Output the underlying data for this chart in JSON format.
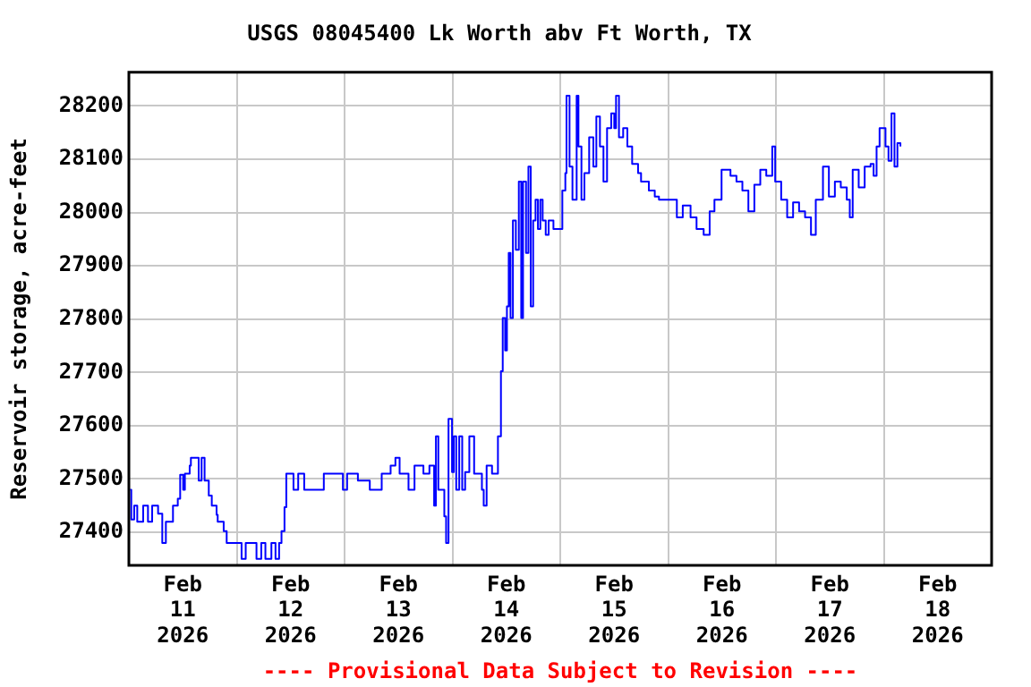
{
  "chart_data": {
    "type": "step",
    "title": "USGS 08045400 Lk Worth abv Ft Worth, TX",
    "ylabel": "Reservoir storage, acre-feet",
    "annotations": [
      "---- Provisional Data Subject to Revision ----"
    ],
    "series": [
      {
        "color": "#0000ff",
        "x": [
          "2026-02-11T00:16",
          "2026-02-11T00:32",
          "2026-02-11T01:11",
          "2026-02-11T01:52",
          "2026-02-11T03:11",
          "2026-02-11T04:15",
          "2026-02-11T05:11",
          "2026-02-11T06:30",
          "2026-02-11T07:26",
          "2026-02-11T08:14",
          "2026-02-11T09:49",
          "2026-02-11T10:53",
          "2026-02-11T11:25",
          "2026-02-11T12:05",
          "2026-02-11T12:28",
          "2026-02-11T13:32",
          "2026-02-11T13:48",
          "2026-02-11T15:08",
          "2026-02-11T15:32",
          "2026-02-11T16:11",
          "2026-02-11T16:51",
          "2026-02-11T17:47",
          "2026-02-11T18:27",
          "2026-02-11T19:31",
          "2026-02-11T19:46",
          "2026-02-11T21:06",
          "2026-02-11T21:46",
          "2026-02-11T22:26",
          "2026-02-12T01:05",
          "2026-02-12T02:00",
          "2026-02-12T04:24",
          "2026-02-12T05:28",
          "2026-02-12T06:23",
          "2026-02-12T07:43",
          "2026-02-12T08:38",
          "2026-02-12T09:26",
          "2026-02-12T09:58",
          "2026-02-12T10:38",
          "2026-02-12T11:02",
          "2026-02-12T12:38",
          "2026-02-12T13:41",
          "2026-02-12T15:01",
          "2026-02-12T16:20",
          "2026-02-12T19:23",
          "2026-02-12T23:38",
          "2026-02-13T00:34",
          "2026-02-13T02:58",
          "2026-02-13T05:37",
          "2026-02-13T08:16",
          "2026-02-13T10:15",
          "2026-02-13T11:19",
          "2026-02-13T12:15",
          "2026-02-13T14:14",
          "2026-02-13T15:34",
          "2026-02-13T17:33",
          "2026-02-13T18:53",
          "2026-02-13T19:56",
          "2026-02-13T20:20",
          "2026-02-13T20:52",
          "2026-02-13T21:48",
          "2026-02-13T22:12",
          "2026-02-13T22:36",
          "2026-02-13T23:08",
          "2026-02-13T23:55",
          "2026-02-14T00:19",
          "2026-02-14T00:51",
          "2026-02-14T01:31",
          "2026-02-14T02:11",
          "2026-02-14T02:50",
          "2026-02-14T03:46",
          "2026-02-14T04:50",
          "2026-02-14T06:34",
          "2026-02-14T06:58",
          "2026-02-14T07:37",
          "2026-02-14T08:49",
          "2026-02-14T09:29",
          "2026-02-14T10:08",
          "2026-02-14T10:48",
          "2026-02-14T11:12",
          "2026-02-14T11:44",
          "2026-02-14T12:08",
          "2026-02-14T12:32",
          "2026-02-14T12:56",
          "2026-02-14T13:28",
          "2026-02-14T14:07",
          "2026-02-14T14:47",
          "2026-02-14T15:19",
          "2026-02-14T15:43",
          "2026-02-14T16:23",
          "2026-02-14T16:55",
          "2026-02-14T17:26",
          "2026-02-14T17:58",
          "2026-02-14T18:30",
          "2026-02-14T19:02",
          "2026-02-14T19:34",
          "2026-02-14T20:05",
          "2026-02-14T20:46",
          "2026-02-14T21:25",
          "2026-02-14T22:29",
          "2026-02-14T23:40",
          "2026-02-15T00:28",
          "2026-02-15T01:08",
          "2026-02-15T01:24",
          "2026-02-15T02:04",
          "2026-02-15T02:43",
          "2026-02-15T03:39",
          "2026-02-15T04:03",
          "2026-02-15T04:43",
          "2026-02-15T05:23",
          "2026-02-15T06:26",
          "2026-02-15T07:22",
          "2026-02-15T08:02",
          "2026-02-15T08:50",
          "2026-02-15T09:37",
          "2026-02-15T10:25",
          "2026-02-15T11:21",
          "2026-02-15T12:01",
          "2026-02-15T12:25",
          "2026-02-15T13:04",
          "2026-02-15T14:00",
          "2026-02-15T14:56",
          "2026-02-15T16:00",
          "2026-02-15T17:19",
          "2026-02-15T17:59",
          "2026-02-15T19:43",
          "2026-02-15T21:02",
          "2026-02-15T21:58",
          "2026-02-16T01:17",
          "2026-02-16T01:57",
          "2026-02-16T03:16",
          "2026-02-16T05:00",
          "2026-02-16T06:20",
          "2026-02-16T07:55",
          "2026-02-16T09:15",
          "2026-02-16T10:19",
          "2026-02-16T11:54",
          "2026-02-16T13:53",
          "2026-02-16T15:13",
          "2026-02-16T16:32",
          "2026-02-16T17:52",
          "2026-02-16T19:12",
          "2026-02-16T20:31",
          "2026-02-16T21:51",
          "2026-02-16T23:11",
          "2026-02-16T23:50",
          "2026-02-17T01:10",
          "2026-02-17T02:30",
          "2026-02-17T03:49",
          "2026-02-17T05:09",
          "2026-02-17T06:29",
          "2026-02-17T07:48",
          "2026-02-17T08:52",
          "2026-02-17T10:28",
          "2026-02-17T11:47",
          "2026-02-17T13:07",
          "2026-02-17T14:26",
          "2026-02-17T15:46",
          "2026-02-17T16:26",
          "2026-02-17T17:05",
          "2026-02-17T18:25",
          "2026-02-17T19:45",
          "2026-02-17T21:04",
          "2026-02-17T21:44",
          "2026-02-17T22:24",
          "2026-02-17T23:04",
          "2026-02-18T00:23",
          "2026-02-18T01:03",
          "2026-02-18T01:43",
          "2026-02-18T02:23",
          "2026-02-18T03:02",
          "2026-02-18T03:42"
        ],
        "values": [
          27480,
          27424,
          27450,
          27420,
          27450,
          27420,
          27450,
          27435,
          27380,
          27420,
          27450,
          27463,
          27508,
          27480,
          27510,
          27525,
          27540,
          27540,
          27497,
          27540,
          27497,
          27469,
          27450,
          27433,
          27420,
          27402,
          27380,
          27380,
          27350,
          27380,
          27350,
          27380,
          27350,
          27380,
          27350,
          27380,
          27402,
          27447,
          27510,
          27480,
          27510,
          27480,
          27480,
          27510,
          27480,
          27510,
          27497,
          27480,
          27510,
          27525,
          27540,
          27510,
          27480,
          27525,
          27510,
          27525,
          27450,
          27580,
          27480,
          27480,
          27430,
          27380,
          27613,
          27513,
          27580,
          27480,
          27580,
          27480,
          27513,
          27580,
          27510,
          27480,
          27450,
          27525,
          27510,
          27510,
          27580,
          27702,
          27802,
          27741,
          27824,
          27924,
          27802,
          27985,
          27930,
          28058,
          27802,
          28058,
          27924,
          28086,
          27824,
          27985,
          28024,
          27969,
          28024,
          27985,
          27958,
          27985,
          27969,
          27969,
          28041,
          28074,
          28219,
          28086,
          28024,
          28219,
          28124,
          28024,
          28074,
          28141,
          28086,
          28180,
          28124,
          28058,
          28158,
          28186,
          28158,
          28219,
          28141,
          28158,
          28124,
          28091,
          28074,
          28058,
          28041,
          28030,
          28024,
          28024,
          27991,
          28013,
          27991,
          27969,
          27958,
          28002,
          28024,
          28080,
          28069,
          28058,
          28041,
          28002,
          28052,
          28080,
          28069,
          28124,
          28058,
          28024,
          27991,
          28019,
          28002,
          27991,
          27958,
          28024,
          28086,
          28030,
          28058,
          28047,
          28024,
          27991,
          28080,
          28047,
          28086,
          28091,
          28069,
          28124,
          28158,
          28124,
          28097,
          28186,
          28086,
          28130,
          28124
        ]
      }
    ],
    "xlim": [
      "2026-02-11T00:00",
      "2026-02-19T00:00"
    ],
    "xticks": [
      {
        "value": "2026-02-12T00:00",
        "label": null
      },
      {
        "value": "2026-02-13T00:00",
        "label": null
      },
      {
        "value": "2026-02-14T00:00",
        "label": null
      },
      {
        "value": "2026-02-15T00:00",
        "label": null
      },
      {
        "value": "2026-02-16T00:00",
        "label": null
      },
      {
        "value": "2026-02-17T00:00",
        "label": null
      },
      {
        "value": "2026-02-18T00:00",
        "label": null
      },
      {
        "value": "2026-02-11T12:00",
        "label": "Feb\n11\n2026"
      },
      {
        "value": "2026-02-12T12:00",
        "label": "Feb\n12\n2026"
      },
      {
        "value": "2026-02-13T12:00",
        "label": "Feb\n13\n2026"
      },
      {
        "value": "2026-02-14T12:00",
        "label": "Feb\n14\n2026"
      },
      {
        "value": "2026-02-15T12:00",
        "label": "Feb\n15\n2026"
      },
      {
        "value": "2026-02-16T12:00",
        "label": "Feb\n16\n2026"
      },
      {
        "value": "2026-02-17T12:00",
        "label": "Feb\n17\n2026"
      },
      {
        "value": "2026-02-18T12:00",
        "label": "Feb\n18\n2026"
      }
    ],
    "ylim": [
      27338,
      28263
    ],
    "yticks": [
      27400,
      27500,
      27600,
      27700,
      27800,
      27900,
      28000,
      28100,
      28200
    ],
    "grid": true,
    "legend": false,
    "marker": "none",
    "line_style": "solid"
  }
}
